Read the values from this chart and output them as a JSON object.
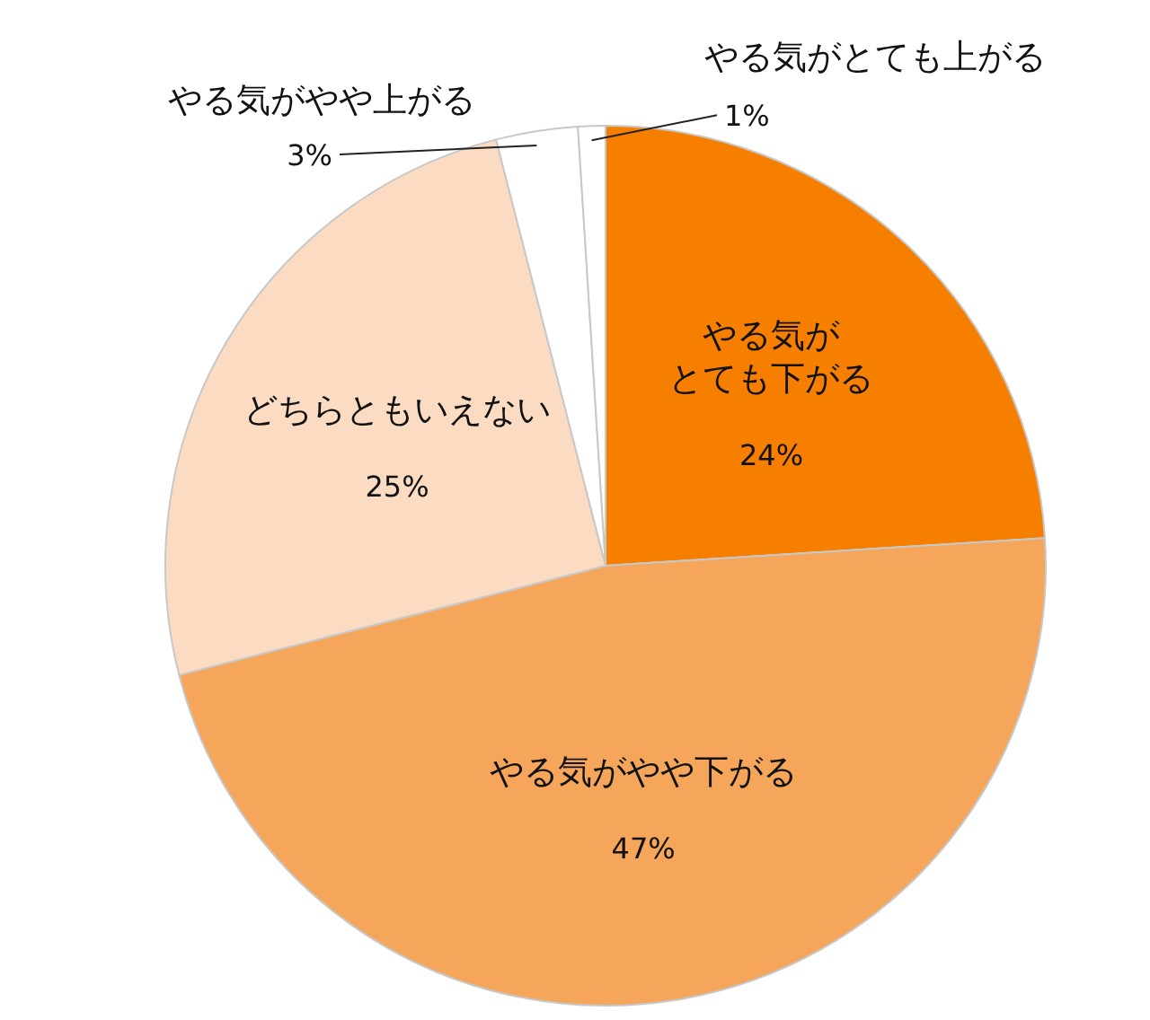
{
  "chart_data": {
    "type": "pie",
    "categories": [
      "やる気がとても下がる",
      "やる気がやや下がる",
      "どちらともいえない",
      "やる気がやや上がる",
      "やる気がとても上がる"
    ],
    "values": [
      24,
      47,
      25,
      3,
      1
    ],
    "value_labels": [
      "24%",
      "47%",
      "25%",
      "3%",
      "1%"
    ],
    "colors": [
      "#f77f00",
      "#f5a65b",
      "#fbdcc2",
      "#ffffff",
      "#ffffff"
    ],
    "legend": false
  }
}
